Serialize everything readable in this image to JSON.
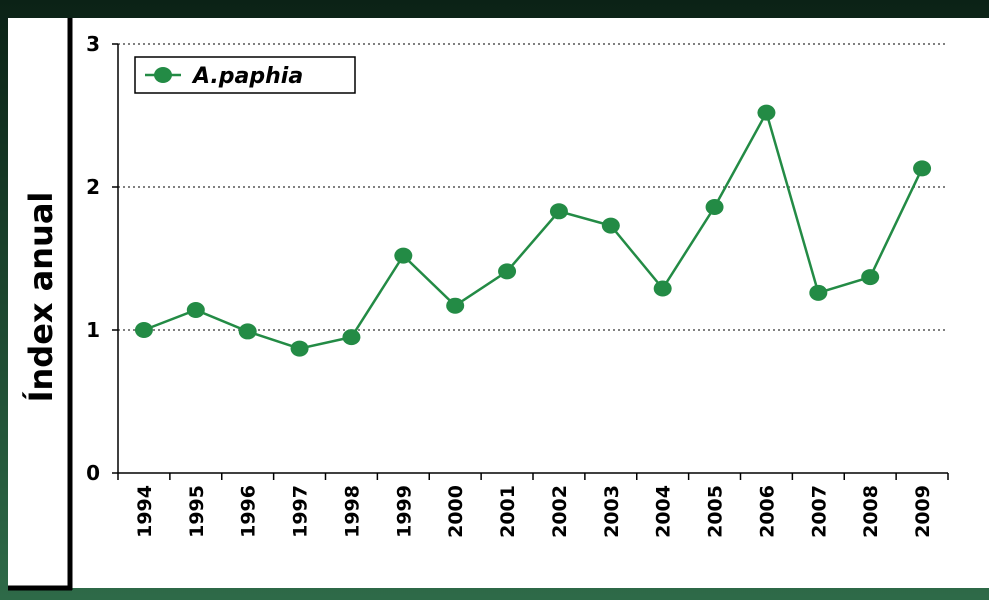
{
  "chart_data": {
    "type": "line",
    "y_label": "Índex anual",
    "categories": [
      "1994",
      "1995",
      "1996",
      "1997",
      "1998",
      "1999",
      "2000",
      "2001",
      "2002",
      "2003",
      "2004",
      "2005",
      "2006",
      "2007",
      "2008",
      "2009"
    ],
    "series": [
      {
        "name": "A.paphia",
        "color": "#238b45",
        "values": [
          1.0,
          1.14,
          0.99,
          0.87,
          0.95,
          1.52,
          1.17,
          1.41,
          1.83,
          1.73,
          1.29,
          1.86,
          2.52,
          1.26,
          1.37,
          2.13
        ]
      }
    ],
    "ylim": [
      0,
      3
    ],
    "yticks": [
      0,
      1,
      2,
      3
    ],
    "grid": true,
    "legend": "top-left"
  }
}
